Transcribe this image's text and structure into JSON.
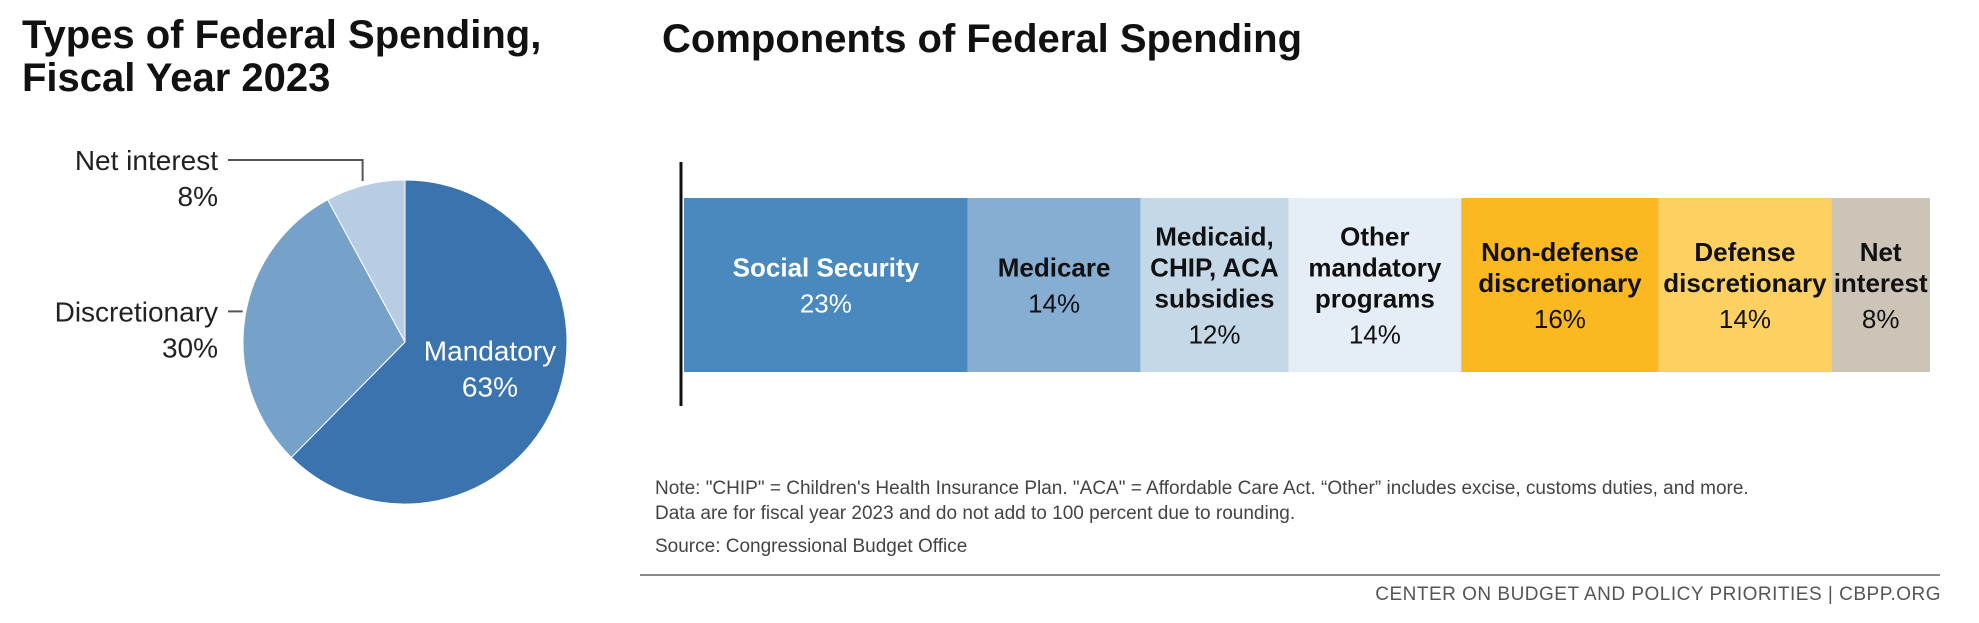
{
  "left_title_line1": "Types of Federal Spending,",
  "left_title_line2": "Fiscal Year 2023",
  "right_title": "Components of Federal Spending",
  "note_line1": "Note: \"CHIP\" = Children's Health Insurance Plan. \"ACA\" = Affordable Care Act. “Other” includes excise, customs duties, and more.",
  "note_line2": "Data are for fiscal year 2023 and do not add to 100 percent due to rounding.",
  "source": "Source: Congressional Budget Office",
  "footer": "CENTER ON BUDGET AND POLICY PRIORITIES | CBPP.ORG",
  "chart_data": [
    {
      "type": "pie",
      "title": "Types of Federal Spending, Fiscal Year 2023",
      "slices": [
        {
          "label": "Mandatory",
          "value": 63,
          "display": "63%",
          "color": "#3a73ad",
          "label_position": "inside"
        },
        {
          "label": "Discretionary",
          "value": 30,
          "display": "30%",
          "color": "#76a1c8",
          "label_position": "outside-left"
        },
        {
          "label": "Net interest",
          "value": 8,
          "display": "8%",
          "color": "#b8cde3",
          "label_position": "outside-left"
        }
      ]
    },
    {
      "type": "bar",
      "orientation": "horizontal-stacked",
      "title": "Components of Federal Spending",
      "segments": [
        {
          "label_lines": [
            "Social Security"
          ],
          "value": 23,
          "display": "23%",
          "color": "#4a89bd",
          "text_color": "#ffffff"
        },
        {
          "label_lines": [
            "Medicare"
          ],
          "value": 14,
          "display": "14%",
          "color": "#86aed3",
          "text_color": "#111111"
        },
        {
          "label_lines": [
            "Medicaid,",
            "CHIP, ACA",
            "subsidies"
          ],
          "value": 12,
          "display": "12%",
          "color": "#c5d8e8",
          "text_color": "#111111"
        },
        {
          "label_lines": [
            "Other",
            "mandatory",
            "programs"
          ],
          "value": 14,
          "display": "14%",
          "color": "#e5eef6",
          "text_color": "#111111"
        },
        {
          "label_lines": [
            "Non-defense",
            "discretionary"
          ],
          "value": 16,
          "display": "16%",
          "color": "#fbb821",
          "text_color": "#111111"
        },
        {
          "label_lines": [
            "Defense",
            "discretionary"
          ],
          "value": 14,
          "display": "14%",
          "color": "#fdd062",
          "text_color": "#111111"
        },
        {
          "label_lines": [
            "Net",
            "interest"
          ],
          "value": 8,
          "display": "8%",
          "color": "#cdc4b8",
          "text_color": "#111111"
        }
      ]
    }
  ]
}
